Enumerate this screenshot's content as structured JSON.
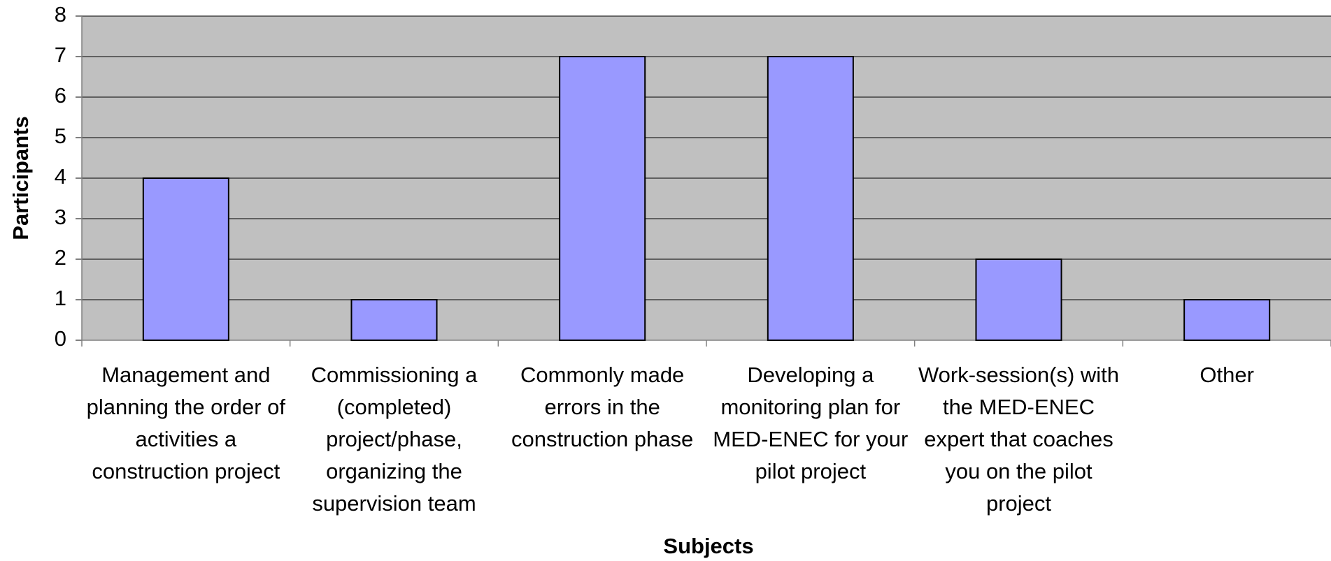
{
  "chart_data": {
    "type": "bar",
    "categories": [
      "Management and planning the order of activities a construction project",
      "Commissioning a (completed) project/phase, organizing the supervision team",
      "Commonly made errors in the construction phase",
      "Developing a monitoring plan for MED-ENEC for your pilot project",
      "Work-session(s) with the MED-ENEC expert that coaches you on the pilot project",
      "Other"
    ],
    "values": [
      4,
      1,
      7,
      7,
      2,
      1
    ],
    "color": "#9999ff",
    "background": "#c0c0c0",
    "xlabel": "Subjects",
    "ylabel": "Participants",
    "ylim": [
      0,
      8
    ],
    "yticks": [
      0,
      1,
      2,
      3,
      4,
      5,
      6,
      7,
      8
    ],
    "grid": true
  }
}
